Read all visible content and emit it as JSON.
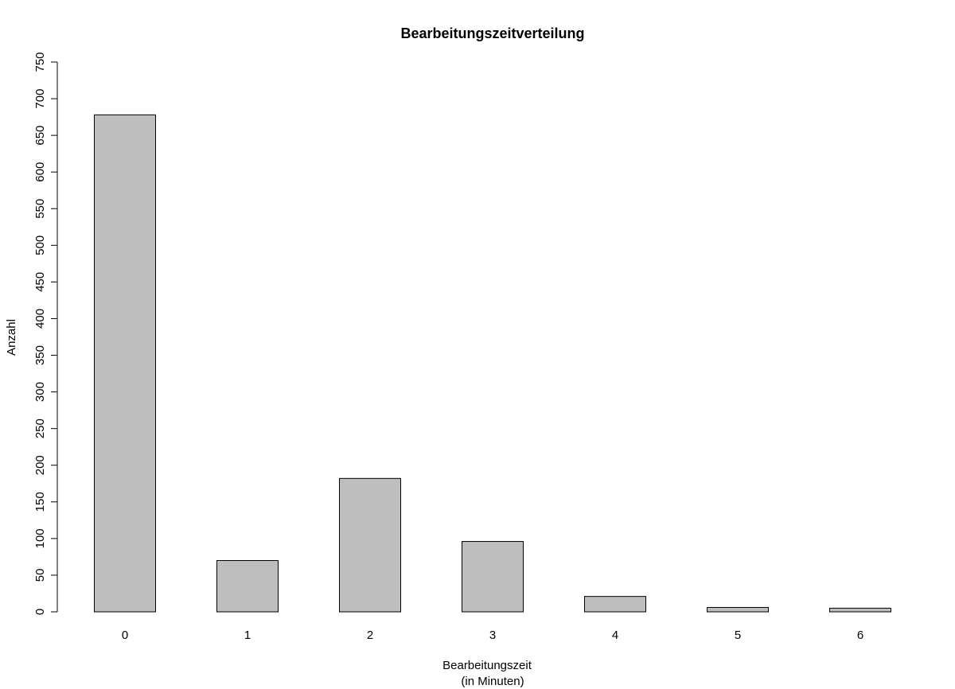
{
  "chart_data": {
    "type": "bar",
    "title": "Bearbeitungszeitverteilung",
    "xlabel": "Bearbeitungszeit",
    "xlabel_sub": "(in Minuten)",
    "ylabel": "Anzahl",
    "categories": [
      "0",
      "1",
      "2",
      "3",
      "4",
      "5",
      "6"
    ],
    "values": [
      678,
      70,
      182,
      96,
      21,
      6,
      5
    ],
    "ylim": [
      0,
      750
    ],
    "yticks": [
      0,
      50,
      100,
      150,
      200,
      250,
      300,
      350,
      400,
      450,
      500,
      550,
      600,
      650,
      700,
      750
    ],
    "bar_color": "#bebebe",
    "border_color": "#000000",
    "grid": false,
    "legend": "none"
  }
}
